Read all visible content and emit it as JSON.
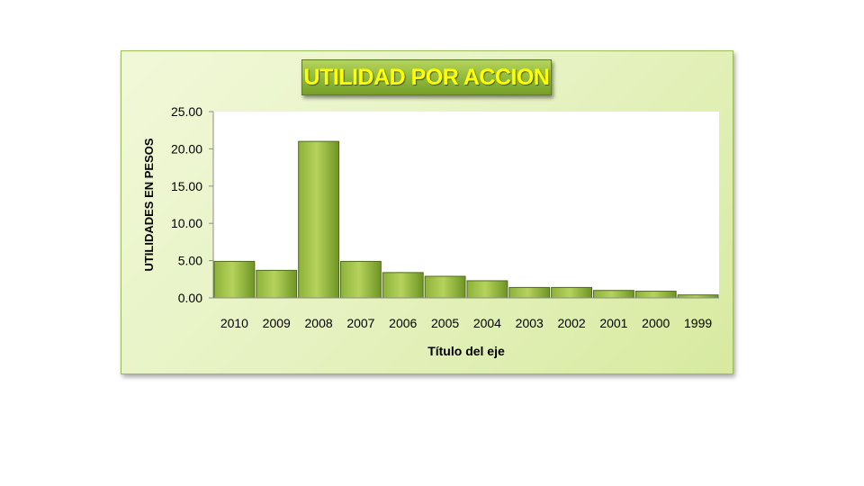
{
  "chart_data": {
    "type": "bar",
    "title": "UTILIDAD POR ACCION",
    "xlabel": "Título del eje",
    "ylabel": "UTILIDADES EN PESOS",
    "categories": [
      "2010",
      "2009",
      "2008",
      "2007",
      "2006",
      "2005",
      "2004",
      "2003",
      "2002",
      "2001",
      "2000",
      "1999"
    ],
    "values": [
      4.9,
      3.7,
      21.0,
      4.9,
      3.4,
      2.9,
      2.3,
      1.4,
      1.4,
      1.0,
      0.9,
      0.4
    ],
    "ylim": [
      0,
      25
    ],
    "yticks": [
      "0.00",
      "5.00",
      "10.00",
      "15.00",
      "20.00",
      "25.00"
    ],
    "ytick_values": [
      0,
      5,
      10,
      15,
      20,
      25
    ],
    "grid": false,
    "legend": "none",
    "colors": {
      "bar_light": "#b5d35c",
      "bar_dark": "#6f9424",
      "bar_edge": "#4f6b1a",
      "title_text": "#ffff00",
      "plot_bg": "#ffffff",
      "chart_bg": "#e6f2c1"
    }
  }
}
